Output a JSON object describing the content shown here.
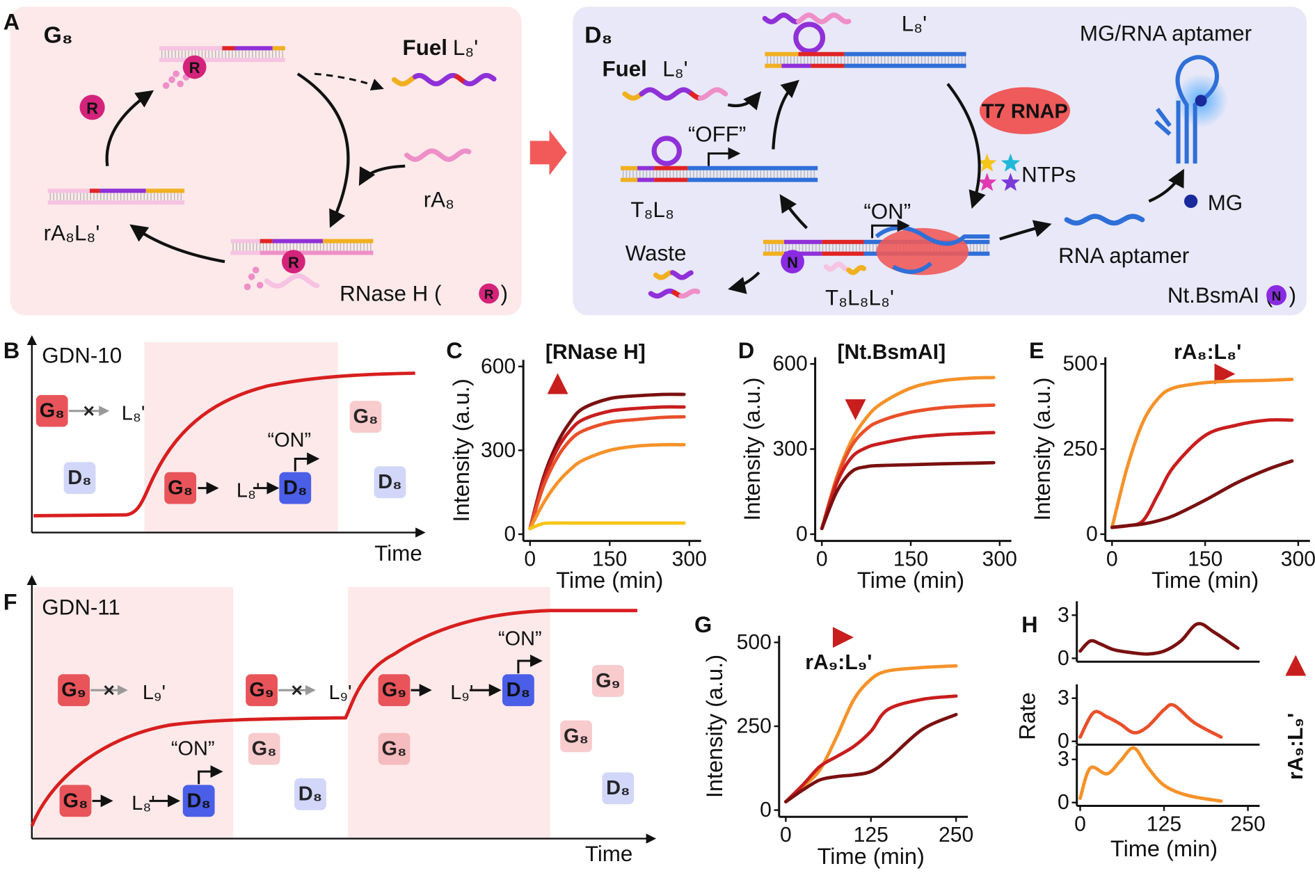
{
  "figure": {
    "panel_a": {
      "label": "A",
      "left": {
        "title": "G₈",
        "fuel": "Fuel",
        "fuel_strand": "L₈'",
        "input": "rA₈",
        "complex": "rA₈L₈'",
        "enzyme_name": "RNase H (",
        "enzyme_icon": "R",
        "close": ")"
      },
      "right": {
        "title": "D₈",
        "fuel": "Fuel",
        "fuel_strand": "L₈'",
        "top_strand": "L₈'",
        "product": "MG/RNA aptamer",
        "polymerase": "T7 RNAP",
        "ntps": "NTPs",
        "off": "“OFF”",
        "template": "T₈L₈",
        "on": "“ON”",
        "waste": "Waste",
        "complex": "T₈L₈L₈'",
        "aptamer": "RNA aptamer",
        "dye": "MG",
        "enzyme_name": "Nt.BsmAI (",
        "enzyme_icon": "N",
        "close": ")"
      }
    },
    "panel_b": {
      "label": "B",
      "title": "GDN-10",
      "x_label": "Time",
      "gate": "G₈",
      "strand": "L₈'",
      "device": "D₈",
      "on": "“ON”"
    },
    "panel_f": {
      "label": "F",
      "title": "GDN-11",
      "x_label": "Time",
      "gate9": "G₉",
      "strand9": "L₉'",
      "gate8": "G₈",
      "strand8": "L₈'",
      "device": "D₈",
      "on": "“ON”"
    }
  },
  "chart_data": [
    {
      "type": "line",
      "panel_label": "C",
      "annotation": "[RNase H]",
      "x_label": "Time (min)",
      "y_label": "Intensity (a.u.)",
      "x": [
        0,
        25,
        50,
        75,
        100,
        150,
        200,
        250,
        290
      ],
      "series": [
        {
          "color": "#7a1010",
          "values": [
            20,
            200,
            320,
            400,
            450,
            485,
            495,
            500,
            500
          ]
        },
        {
          "color": "#c81e1e",
          "values": [
            20,
            190,
            300,
            370,
            410,
            440,
            450,
            455,
            455
          ]
        },
        {
          "color": "#e8502a",
          "values": [
            20,
            170,
            270,
            335,
            370,
            400,
            410,
            418,
            420
          ]
        },
        {
          "color": "#f5922a",
          "values": [
            20,
            110,
            180,
            230,
            265,
            300,
            315,
            320,
            320
          ]
        },
        {
          "color": "#f5c518",
          "values": [
            20,
            38,
            40,
            40,
            40,
            40,
            40,
            40,
            40
          ]
        }
      ],
      "xlim": [
        0,
        300
      ],
      "xticks": [
        0,
        150,
        300
      ],
      "ylim": [
        0,
        600
      ],
      "yticks": [
        0,
        300,
        600
      ]
    },
    {
      "type": "line",
      "panel_label": "D",
      "annotation": "[Nt.BsmAI]",
      "x_label": "Time (min)",
      "y_label": "Intensity (a.u.)",
      "x": [
        0,
        25,
        50,
        75,
        100,
        150,
        200,
        250,
        290
      ],
      "series": [
        {
          "color": "#f5922a",
          "values": [
            20,
            200,
            330,
            410,
            460,
            515,
            540,
            550,
            552
          ]
        },
        {
          "color": "#e8502a",
          "values": [
            20,
            195,
            310,
            370,
            400,
            430,
            445,
            452,
            455
          ]
        },
        {
          "color": "#c81e1e",
          "values": [
            20,
            180,
            270,
            305,
            320,
            340,
            350,
            355,
            358
          ]
        },
        {
          "color": "#7a1010",
          "values": [
            20,
            150,
            220,
            238,
            242,
            245,
            248,
            250,
            252
          ]
        }
      ],
      "xlim": [
        0,
        300
      ],
      "xticks": [
        0,
        150,
        300
      ],
      "ylim": [
        0,
        600
      ],
      "yticks": [
        0,
        300,
        600
      ]
    },
    {
      "type": "line",
      "panel_label": "E",
      "annotation": "rA₈:L₈'",
      "x_label": "Time (min)",
      "y_label": "Intensity (a.u.)",
      "x": [
        0,
        25,
        50,
        75,
        100,
        150,
        200,
        250,
        290
      ],
      "series": [
        {
          "color": "#f5922a",
          "values": [
            20,
            200,
            330,
            400,
            430,
            445,
            450,
            452,
            455
          ]
        },
        {
          "color": "#c81e1e",
          "values": [
            20,
            25,
            40,
            120,
            200,
            290,
            320,
            335,
            335
          ]
        },
        {
          "color": "#7a1010",
          "values": [
            20,
            25,
            30,
            40,
            55,
            100,
            150,
            190,
            215
          ]
        }
      ],
      "xlim": [
        0,
        300
      ],
      "xticks": [
        0,
        150,
        300
      ],
      "ylim": [
        0,
        500
      ],
      "yticks": [
        0,
        250,
        500
      ]
    },
    {
      "type": "line",
      "panel_label": "G",
      "annotation": "rA₉:L₉'",
      "x_label": "Time (min)",
      "y_label": "Intensity (a.u.)",
      "x": [
        0,
        25,
        50,
        75,
        100,
        125,
        150,
        200,
        250
      ],
      "series": [
        {
          "color": "#f5922a",
          "values": [
            25,
            70,
            120,
            220,
            330,
            390,
            415,
            425,
            430
          ]
        },
        {
          "color": "#c81e1e",
          "values": [
            25,
            75,
            130,
            160,
            190,
            235,
            300,
            330,
            340
          ]
        },
        {
          "color": "#7a1010",
          "values": [
            25,
            60,
            90,
            100,
            105,
            115,
            150,
            240,
            285
          ]
        }
      ],
      "xlim": [
        0,
        250
      ],
      "xticks": [
        0,
        125,
        250
      ],
      "ylim": [
        0,
        500
      ],
      "yticks": [
        0,
        250,
        500
      ]
    },
    {
      "type": "line",
      "panel_label": "H",
      "x": [
        0,
        15,
        30,
        50,
        75,
        100,
        125,
        150,
        175,
        200,
        235
      ],
      "series": [
        {
          "color": "#7a1010",
          "values": [
            0.5,
            1.2,
            1.0,
            0.6,
            0.4,
            0.3,
            0.5,
            1.2,
            2.4,
            1.8,
            0.7
          ]
        }
      ],
      "xlim": [
        0,
        250
      ],
      "ylim": [
        0,
        3.5
      ],
      "yticks": [
        0,
        3
      ]
    },
    {
      "type": "line",
      "y_label": "Rate",
      "annotation": "rA₉:L₉'",
      "x": [
        0,
        20,
        40,
        60,
        80,
        100,
        125,
        140,
        170,
        210
      ],
      "series": [
        {
          "color": "#e8502a",
          "values": [
            0.3,
            2.0,
            1.7,
            1.2,
            0.6,
            1.0,
            2.2,
            2.5,
            1.3,
            0.3
          ]
        }
      ],
      "xlim": [
        0,
        250
      ],
      "ylim": [
        0,
        3.5
      ],
      "yticks": [
        0,
        3
      ]
    },
    {
      "type": "line",
      "x_label": "Time (min)",
      "x": [
        0,
        15,
        40,
        60,
        80,
        100,
        125,
        160,
        210
      ],
      "series": [
        {
          "color": "#f5922a",
          "values": [
            0.3,
            2.4,
            2.0,
            2.9,
            3.8,
            2.5,
            1.2,
            0.5,
            0.1
          ]
        }
      ],
      "xlim": [
        0,
        250
      ],
      "xticks": [
        0,
        125,
        250
      ],
      "ylim": [
        0,
        3.5
      ],
      "yticks": [
        0,
        3
      ]
    }
  ]
}
